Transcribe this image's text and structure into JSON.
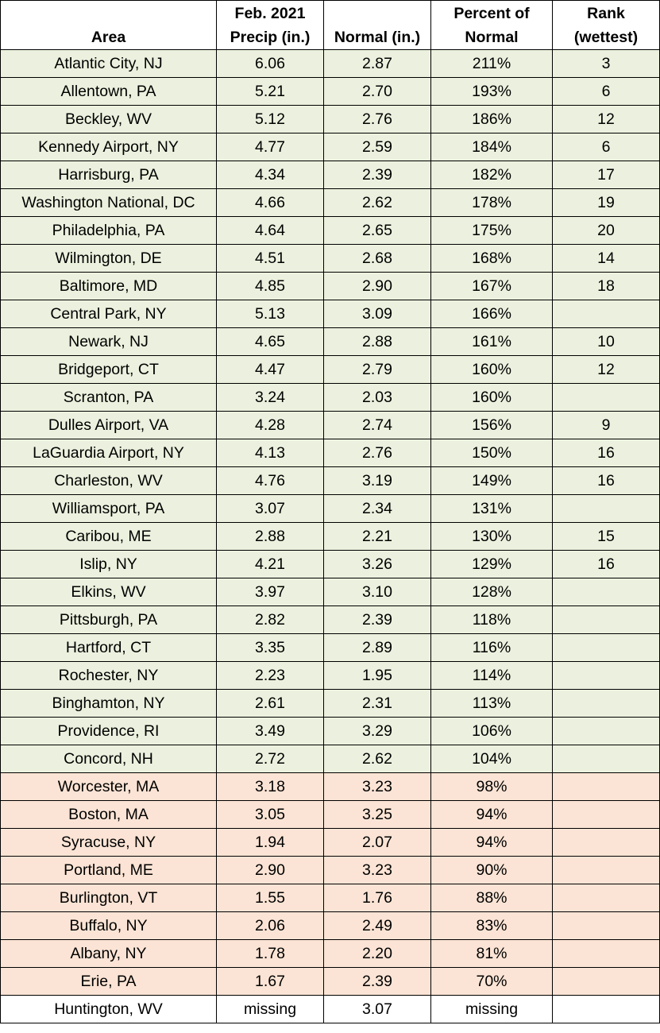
{
  "table": {
    "header": [
      "Area",
      "Feb. 2021\nPrecip (in.)",
      "Normal (in.)",
      "Percent of\nNormal",
      "Rank\n(wettest)"
    ],
    "groups": [
      {
        "color": "#ebf1de",
        "rows": [
          [
            "Atlantic City, NJ",
            "6.06",
            "2.87",
            "211%",
            "3"
          ],
          [
            "Allentown, PA",
            "5.21",
            "2.70",
            "193%",
            "6"
          ],
          [
            "Beckley, WV",
            "5.12",
            "2.76",
            "186%",
            "12"
          ],
          [
            "Kennedy Airport, NY",
            "4.77",
            "2.59",
            "184%",
            "6"
          ],
          [
            "Harrisburg, PA",
            "4.34",
            "2.39",
            "182%",
            "17"
          ],
          [
            "Washington National, DC",
            "4.66",
            "2.62",
            "178%",
            "19"
          ],
          [
            "Philadelphia, PA",
            "4.64",
            "2.65",
            "175%",
            "20"
          ],
          [
            "Wilmington, DE",
            "4.51",
            "2.68",
            "168%",
            "14"
          ],
          [
            "Baltimore, MD",
            "4.85",
            "2.90",
            "167%",
            "18"
          ],
          [
            "Central Park, NY",
            "5.13",
            "3.09",
            "166%",
            null
          ],
          [
            "Newark, NJ",
            "4.65",
            "2.88",
            "161%",
            "10"
          ],
          [
            "Bridgeport, CT",
            "4.47",
            "2.79",
            "160%",
            "12"
          ],
          [
            "Scranton, PA",
            "3.24",
            "2.03",
            "160%",
            null
          ],
          [
            "Dulles Airport, VA",
            "4.28",
            "2.74",
            "156%",
            "9"
          ],
          [
            "LaGuardia Airport, NY",
            "4.13",
            "2.76",
            "150%",
            "16"
          ],
          [
            "Charleston, WV",
            "4.76",
            "3.19",
            "149%",
            "16"
          ],
          [
            "Williamsport, PA",
            "3.07",
            "2.34",
            "131%",
            null
          ],
          [
            "Caribou, ME",
            "2.88",
            "2.21",
            "130%",
            "15"
          ],
          [
            "Islip, NY",
            "4.21",
            "3.26",
            "129%",
            "16"
          ],
          [
            "Elkins, WV",
            "3.97",
            "3.10",
            "128%",
            null
          ],
          [
            "Pittsburgh, PA",
            "2.82",
            "2.39",
            "118%",
            null
          ],
          [
            "Hartford, CT",
            "3.35",
            "2.89",
            "116%",
            null
          ],
          [
            "Rochester, NY",
            "2.23",
            "1.95",
            "114%",
            null
          ],
          [
            "Binghamton, NY",
            "2.61",
            "2.31",
            "113%",
            null
          ],
          [
            "Providence, RI",
            "3.49",
            "3.29",
            "106%",
            null
          ],
          [
            "Concord, NH",
            "2.72",
            "2.62",
            "104%",
            null
          ]
        ]
      },
      {
        "color": "#fbe4d5",
        "rows": [
          [
            "Worcester, MA",
            "3.18",
            "3.23",
            "98%",
            null
          ],
          [
            "Boston, MA",
            "3.05",
            "3.25",
            "94%",
            null
          ],
          [
            "Syracuse, NY",
            "1.94",
            "2.07",
            "94%",
            null
          ],
          [
            "Portland, ME",
            "2.90",
            "3.23",
            "90%",
            null
          ],
          [
            "Burlington, VT",
            "1.55",
            "1.76",
            "88%",
            null
          ],
          [
            "Buffalo, NY",
            "2.06",
            "2.49",
            "83%",
            null
          ],
          [
            "Albany, NY",
            "1.78",
            "2.20",
            "81%",
            null
          ],
          [
            "Erie, PA",
            "1.67",
            "2.39",
            "70%",
            null
          ]
        ]
      },
      {
        "color": "#ffffff",
        "rows": [
          [
            "Huntington, WV",
            "missing",
            "3.07",
            "missing",
            null
          ]
        ]
      }
    ]
  }
}
